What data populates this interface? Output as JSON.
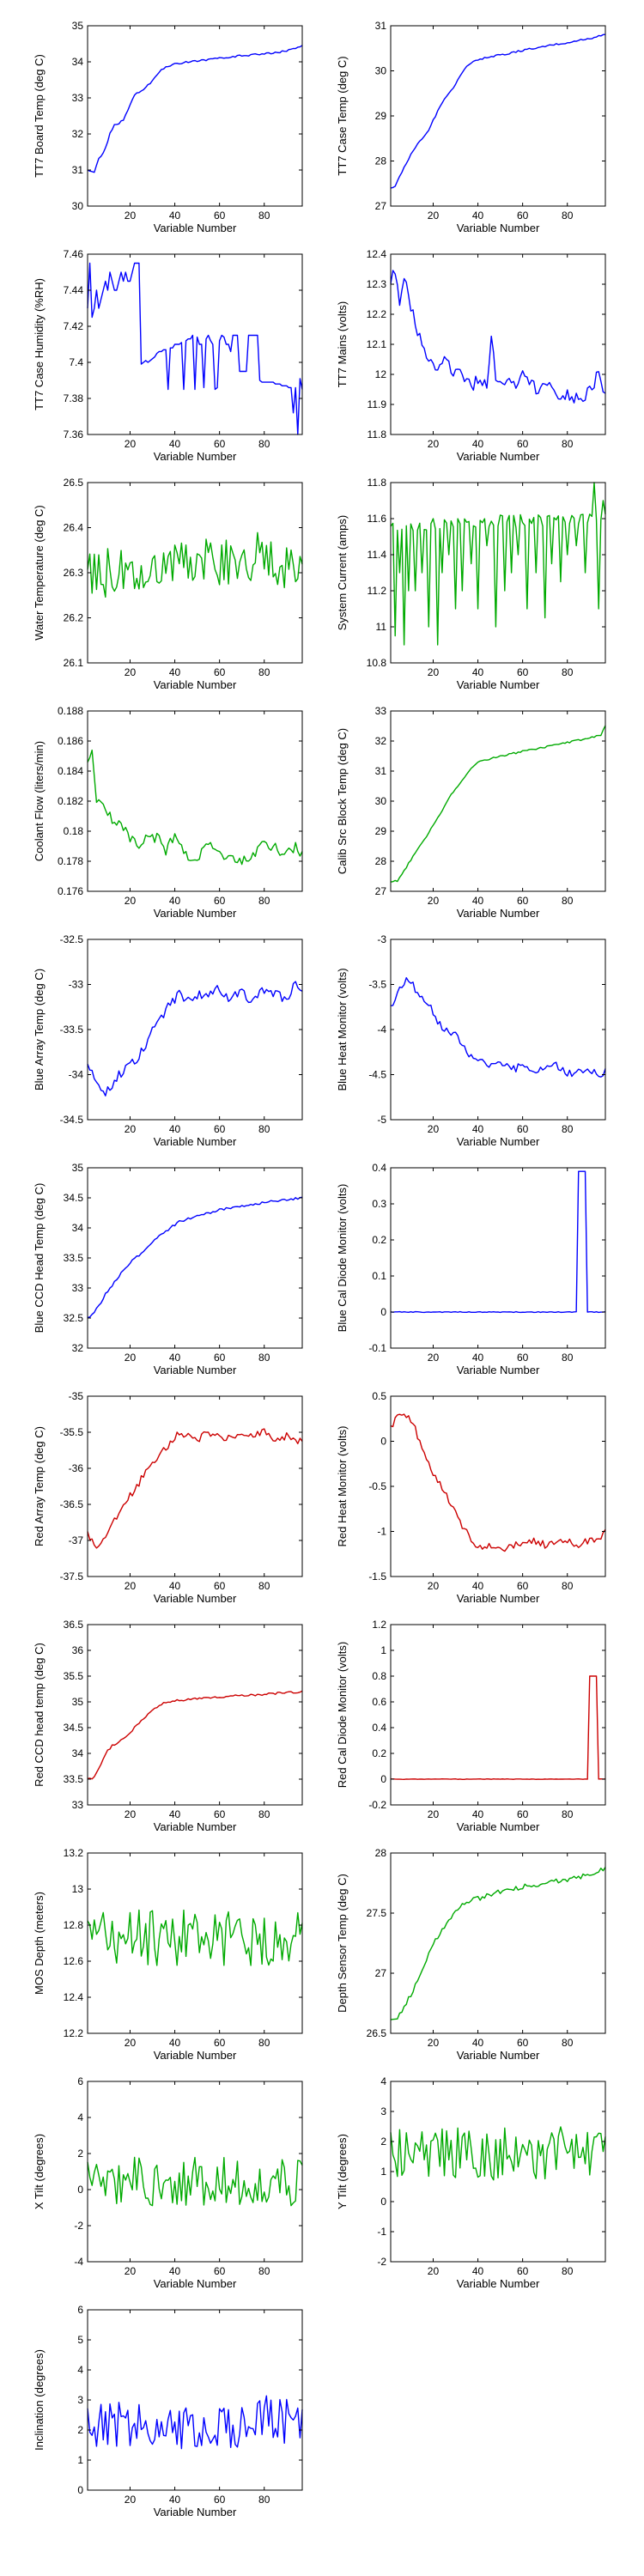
{
  "xlabel": "Variable Number",
  "xticks": [
    20,
    40,
    60,
    80
  ],
  "xlim": [
    1,
    97
  ],
  "colors": {
    "blue": "#0000ff",
    "green": "#00aa00",
    "red": "#cc0000",
    "axis": "#000000"
  },
  "chart_data": [
    {
      "type": "line",
      "ylabel": "TT7 Board Temp (deg C)",
      "color": "blue",
      "ylim": [
        30,
        35
      ],
      "yticks": [
        30,
        31,
        32,
        33,
        34,
        35
      ],
      "kind": "knots",
      "x": [
        1,
        4,
        6,
        9,
        11,
        13,
        15,
        17,
        20,
        22,
        25,
        28,
        31,
        34,
        38,
        40,
        50,
        60,
        70,
        80,
        90,
        97
      ],
      "y": [
        31.0,
        30.95,
        31.3,
        31.6,
        32.0,
        32.25,
        32.3,
        32.4,
        32.8,
        33.1,
        33.2,
        33.35,
        33.55,
        33.8,
        33.9,
        33.95,
        34.02,
        34.1,
        34.17,
        34.22,
        34.3,
        34.45
      ],
      "seed": 11,
      "noise": 0.025
    },
    {
      "type": "line",
      "ylabel": "TT7 Case Temp (deg C)",
      "color": "blue",
      "ylim": [
        27,
        31
      ],
      "yticks": [
        27,
        28,
        29,
        30,
        31
      ],
      "kind": "knots",
      "x": [
        1,
        3,
        6,
        9,
        12,
        15,
        18,
        21,
        24,
        27,
        30,
        33,
        36,
        40,
        50,
        60,
        70,
        80,
        90,
        97
      ],
      "y": [
        27.4,
        27.45,
        27.75,
        28.05,
        28.3,
        28.5,
        28.7,
        29.0,
        29.3,
        29.5,
        29.7,
        29.95,
        30.15,
        30.25,
        30.35,
        30.45,
        30.55,
        30.62,
        30.72,
        30.8
      ],
      "seed": 12,
      "noise": 0.02
    },
    {
      "type": "line",
      "ylabel": "TT7 Case Humidity (%RH)",
      "color": "blue",
      "ylim": [
        7.36,
        7.46
      ],
      "yticks": [
        7.36,
        7.38,
        7.4,
        7.42,
        7.44,
        7.46
      ],
      "kind": "explicit",
      "y": [
        7.43,
        7.455,
        7.425,
        7.43,
        7.44,
        7.43,
        7.435,
        7.44,
        7.445,
        7.44,
        7.45,
        7.445,
        7.44,
        7.44,
        7.445,
        7.45,
        7.445,
        7.45,
        7.445,
        7.445,
        7.45,
        7.455,
        7.455,
        7.455,
        7.399,
        7.4,
        7.401,
        7.4,
        7.401,
        7.402,
        7.403,
        7.405,
        7.406,
        7.406,
        7.407,
        7.407,
        7.385,
        7.408,
        7.408,
        7.41,
        7.41,
        7.41,
        7.411,
        7.385,
        7.412,
        7.413,
        7.413,
        7.415,
        7.385,
        7.414,
        7.41,
        7.41,
        7.386,
        7.413,
        7.415,
        7.412,
        7.41,
        7.385,
        7.386,
        7.412,
        7.415,
        7.414,
        7.41,
        7.41,
        7.406,
        7.415,
        7.415,
        7.415,
        7.395,
        7.395,
        7.395,
        7.395,
        7.415,
        7.415,
        7.415,
        7.415,
        7.415,
        7.39,
        7.389,
        7.389,
        7.389,
        7.389,
        7.389,
        7.389,
        7.388,
        7.388,
        7.388,
        7.387,
        7.387,
        7.387,
        7.386,
        7.386,
        7.372,
        7.386,
        7.36,
        7.391,
        7.385
      ],
      "seed": 0,
      "noise": 0
    },
    {
      "type": "line",
      "ylabel": "TT7 Mains  (volts)",
      "color": "blue",
      "ylim": [
        11.8,
        12.4
      ],
      "yticks": [
        11.8,
        11.9,
        12,
        12.1,
        12.2,
        12.3,
        12.4
      ],
      "kind": "knots",
      "x": [
        1,
        3,
        5,
        7,
        10,
        13,
        16,
        19,
        22,
        25,
        28,
        31,
        34,
        37,
        40,
        44,
        46,
        48,
        52,
        56,
        60,
        66,
        72,
        78,
        84,
        90,
        94,
        97
      ],
      "y": [
        12.3,
        12.35,
        12.25,
        12.32,
        12.22,
        12.15,
        12.08,
        12.05,
        12.02,
        12.07,
        12.0,
        12.02,
        11.98,
        11.96,
        11.98,
        11.96,
        12.12,
        12.0,
        11.97,
        11.96,
        12.0,
        11.95,
        11.96,
        11.93,
        11.92,
        11.94,
        12.01,
        11.93
      ],
      "seed": 14,
      "noise": 0.022
    },
    {
      "type": "line",
      "ylabel": "Water Temperature (deg C)",
      "color": "green",
      "ylim": [
        26.1,
        26.5
      ],
      "yticks": [
        26.1,
        26.2,
        26.3,
        26.4,
        26.5
      ],
      "kind": "knots",
      "x": [
        1,
        20,
        30,
        45,
        60,
        80,
        97
      ],
      "y": [
        26.3,
        26.3,
        26.32,
        26.33,
        26.32,
        26.34,
        26.3
      ],
      "seed": 15,
      "noise": 0.055
    },
    {
      "type": "line",
      "ylabel": "System Current (amps)",
      "color": "green",
      "ylim": [
        10.8,
        11.8
      ],
      "yticks": [
        10.8,
        11,
        11.2,
        11.4,
        11.6,
        11.8
      ],
      "kind": "spikes",
      "base": 11.55,
      "baseNoise": 0.04,
      "drift": 0.06,
      "spikes": [
        [
          3,
          10.95
        ],
        [
          5,
          11.3
        ],
        [
          7,
          10.9
        ],
        [
          9,
          11.2
        ],
        [
          12,
          11.2
        ],
        [
          15,
          11.3
        ],
        [
          18,
          11.0
        ],
        [
          22,
          10.9
        ],
        [
          24,
          11.3
        ],
        [
          27,
          11.4
        ],
        [
          30,
          11.1
        ],
        [
          33,
          11.2
        ],
        [
          37,
          11.35
        ],
        [
          40,
          11.1
        ],
        [
          44,
          11.45
        ],
        [
          48,
          11.0
        ],
        [
          52,
          11.2
        ],
        [
          55,
          11.3
        ],
        [
          58,
          11.4
        ],
        [
          62,
          11.1
        ],
        [
          66,
          11.3
        ],
        [
          70,
          11.05
        ],
        [
          73,
          11.35
        ],
        [
          77,
          11.25
        ],
        [
          80,
          11.4
        ],
        [
          84,
          11.45
        ],
        [
          88,
          11.3
        ],
        [
          92,
          11.8
        ],
        [
          94,
          11.1
        ],
        [
          96,
          11.7
        ]
      ],
      "seed": 16,
      "noise": 0
    },
    {
      "type": "line",
      "ylabel": "Coolant Flow (liters/min)",
      "color": "green",
      "ylim": [
        0.176,
        0.188
      ],
      "yticks": [
        0.176,
        0.178,
        0.18,
        0.182,
        0.184,
        0.186,
        0.188
      ],
      "kind": "knots",
      "x": [
        1,
        3,
        5,
        8,
        12,
        16,
        20,
        24,
        28,
        32,
        36,
        40,
        45,
        50,
        55,
        60,
        65,
        70,
        75,
        80,
        85,
        90,
        94,
        97
      ],
      "y": [
        0.1845,
        0.185,
        0.182,
        0.1815,
        0.1808,
        0.1805,
        0.1795,
        0.1792,
        0.1798,
        0.1795,
        0.1788,
        0.1795,
        0.1785,
        0.1782,
        0.179,
        0.1785,
        0.1783,
        0.178,
        0.1785,
        0.1792,
        0.1788,
        0.1786,
        0.179,
        0.1785
      ],
      "seed": 17,
      "noise": 0.0004
    },
    {
      "type": "line",
      "ylabel": "Calib Src Block Temp (deg C)",
      "color": "green",
      "ylim": [
        27,
        33
      ],
      "yticks": [
        27,
        28,
        29,
        30,
        31,
        32,
        33
      ],
      "kind": "knots",
      "x": [
        1,
        4,
        8,
        12,
        16,
        20,
        24,
        28,
        32,
        36,
        40,
        50,
        60,
        70,
        80,
        90,
        95,
        97
      ],
      "y": [
        27.3,
        27.35,
        27.8,
        28.3,
        28.7,
        29.2,
        29.7,
        30.2,
        30.6,
        31.0,
        31.3,
        31.5,
        31.65,
        31.8,
        31.95,
        32.1,
        32.2,
        32.5
      ],
      "seed": 18,
      "noise": 0.03
    },
    {
      "type": "line",
      "ylabel": "Blue Array Temp (deg C)",
      "color": "blue",
      "ylim": [
        -34.5,
        -32.5
      ],
      "yticks": [
        -34.5,
        -34,
        -33.5,
        -33,
        -32.5
      ],
      "kind": "knots",
      "x": [
        1,
        3,
        6,
        9,
        12,
        15,
        18,
        22,
        26,
        30,
        34,
        38,
        42,
        46,
        50,
        55,
        60,
        65,
        70,
        75,
        80,
        85,
        90,
        94,
        97
      ],
      "y": [
        -33.9,
        -34.0,
        -34.15,
        -34.2,
        -34.1,
        -34.0,
        -33.95,
        -33.85,
        -33.7,
        -33.5,
        -33.4,
        -33.2,
        -33.1,
        -33.2,
        -33.1,
        -33.15,
        -33.05,
        -33.15,
        -33.1,
        -33.2,
        -33.05,
        -33.1,
        -33.15,
        -32.95,
        -33.1
      ],
      "seed": 19,
      "noise": 0.06
    },
    {
      "type": "line",
      "ylabel": "Blue Heat Monitor (volts)",
      "color": "blue",
      "ylim": [
        -5,
        -3
      ],
      "yticks": [
        -5,
        -4.5,
        -4,
        -3.5,
        -3
      ],
      "kind": "knots",
      "x": [
        1,
        3,
        5,
        8,
        11,
        14,
        17,
        20,
        23,
        26,
        30,
        34,
        38,
        40,
        45,
        50,
        55,
        60,
        65,
        70,
        75,
        80,
        85,
        90,
        95,
        97
      ],
      "y": [
        -3.75,
        -3.7,
        -3.55,
        -3.45,
        -3.5,
        -3.65,
        -3.7,
        -3.8,
        -3.95,
        -4.0,
        -4.05,
        -4.2,
        -4.35,
        -4.35,
        -4.38,
        -4.35,
        -4.45,
        -4.4,
        -4.45,
        -4.45,
        -4.4,
        -4.5,
        -4.45,
        -4.45,
        -4.5,
        -4.45
      ],
      "seed": 20,
      "noise": 0.04
    },
    {
      "type": "line",
      "ylabel": "Blue CCD Head Temp (deg C)",
      "color": "blue",
      "ylim": [
        32,
        35
      ],
      "yticks": [
        32,
        32.5,
        33,
        33.5,
        34,
        34.5,
        35
      ],
      "kind": "knots",
      "x": [
        1,
        3,
        6,
        9,
        12,
        15,
        18,
        21,
        24,
        27,
        30,
        34,
        38,
        42,
        50,
        60,
        70,
        80,
        90,
        97
      ],
      "y": [
        32.5,
        32.55,
        32.7,
        32.9,
        33.05,
        33.2,
        33.35,
        33.45,
        33.55,
        33.65,
        33.75,
        33.9,
        34.0,
        34.1,
        34.2,
        34.3,
        34.37,
        34.42,
        34.47,
        34.5
      ],
      "seed": 21,
      "noise": 0.02
    },
    {
      "type": "line",
      "ylabel": "Blue Cal Diode Monitor (volts)",
      "color": "blue",
      "ylim": [
        -0.1,
        0.4
      ],
      "yticks": [
        -0.1,
        0,
        0.1,
        0.2,
        0.3,
        0.4
      ],
      "kind": "pulse",
      "base": 0.0,
      "from": 85,
      "to": 88,
      "peak": 0.39,
      "seed": 22,
      "noise": 0.001
    },
    {
      "type": "line",
      "ylabel": "Red Array Temp (deg C)",
      "color": "red",
      "ylim": [
        -37.5,
        -35
      ],
      "yticks": [
        -37.5,
        -37,
        -36.5,
        -36,
        -35.5,
        -35
      ],
      "kind": "knots",
      "x": [
        1,
        3,
        6,
        9,
        12,
        15,
        18,
        22,
        26,
        30,
        34,
        38,
        42,
        46,
        50,
        55,
        60,
        65,
        70,
        75,
        80,
        85,
        90,
        94,
        97
      ],
      "y": [
        -36.9,
        -37.0,
        -37.1,
        -36.95,
        -36.8,
        -36.6,
        -36.45,
        -36.3,
        -36.1,
        -35.95,
        -35.8,
        -35.65,
        -35.5,
        -35.55,
        -35.6,
        -35.5,
        -35.55,
        -35.6,
        -35.5,
        -35.55,
        -35.5,
        -35.6,
        -35.55,
        -35.6,
        -35.65
      ],
      "seed": 23,
      "noise": 0.05
    },
    {
      "type": "line",
      "ylabel": "Red Heat Monitor (volts)",
      "color": "red",
      "ylim": [
        -1.5,
        0.5
      ],
      "yticks": [
        -1.5,
        -1,
        -0.5,
        0,
        0.5
      ],
      "kind": "knots",
      "x": [
        1,
        3,
        5,
        8,
        11,
        14,
        17,
        20,
        24,
        28,
        32,
        36,
        40,
        44,
        50,
        55,
        60,
        65,
        70,
        75,
        80,
        85,
        90,
        95,
        97
      ],
      "y": [
        0.15,
        0.25,
        0.32,
        0.3,
        0.2,
        0.0,
        -0.2,
        -0.35,
        -0.5,
        -0.7,
        -0.9,
        -1.05,
        -1.2,
        -1.15,
        -1.2,
        -1.15,
        -1.15,
        -1.1,
        -1.15,
        -1.12,
        -1.1,
        -1.15,
        -1.1,
        -1.05,
        -1.0
      ],
      "seed": 24,
      "noise": 0.04
    },
    {
      "type": "line",
      "ylabel": "Red CCD head temp (deg C)",
      "color": "red",
      "ylim": [
        33,
        36.5
      ],
      "yticks": [
        33,
        33.5,
        34,
        34.5,
        35,
        35.5,
        36,
        36.5
      ],
      "kind": "knots",
      "x": [
        1,
        3,
        6,
        9,
        12,
        16,
        20,
        24,
        28,
        32,
        36,
        40,
        50,
        60,
        70,
        80,
        90,
        97
      ],
      "y": [
        33.5,
        33.5,
        33.7,
        34.0,
        34.15,
        34.25,
        34.4,
        34.6,
        34.75,
        34.9,
        35.0,
        35.02,
        35.07,
        35.1,
        35.12,
        35.15,
        35.18,
        35.2
      ],
      "seed": 25,
      "noise": 0.02
    },
    {
      "type": "line",
      "ylabel": "Red Cal Diode Monitor (volts)",
      "color": "red",
      "ylim": [
        -0.2,
        1.2
      ],
      "yticks": [
        -0.2,
        0,
        0.2,
        0.4,
        0.6,
        0.8,
        1,
        1.2
      ],
      "kind": "pulse",
      "base": 0.0,
      "from": 90,
      "to": 93,
      "peak": 0.8,
      "seed": 26,
      "noise": 0.002
    },
    {
      "type": "line",
      "ylabel": "MOS Depth  (meters)",
      "color": "green",
      "ylim": [
        12.2,
        13.2
      ],
      "yticks": [
        12.2,
        12.4,
        12.6,
        12.8,
        13,
        13.2
      ],
      "kind": "knots",
      "x": [
        1,
        50,
        97
      ],
      "y": [
        12.72,
        12.74,
        12.72
      ],
      "seed": 27,
      "noise": 0.16
    },
    {
      "type": "line",
      "ylabel": "Depth Sensor Temp (deg C)",
      "color": "green",
      "ylim": [
        26.5,
        28
      ],
      "yticks": [
        26.5,
        27,
        27.5,
        28
      ],
      "kind": "knots",
      "x": [
        1,
        4,
        8,
        12,
        16,
        20,
        24,
        28,
        32,
        36,
        40,
        50,
        60,
        70,
        80,
        90,
        97
      ],
      "y": [
        26.6,
        26.63,
        26.75,
        26.9,
        27.05,
        27.25,
        27.35,
        27.45,
        27.55,
        27.6,
        27.62,
        27.68,
        27.72,
        27.75,
        27.78,
        27.82,
        27.87
      ],
      "seed": 28,
      "noise": 0.02
    },
    {
      "type": "line",
      "ylabel": "X Tilt  (degrees)",
      "color": "green",
      "ylim": [
        -4,
        6
      ],
      "yticks": [
        -4,
        -2,
        0,
        2,
        4,
        6
      ],
      "kind": "knots",
      "x": [
        1,
        50,
        97
      ],
      "y": [
        0.5,
        0.4,
        0.5
      ],
      "seed": 29,
      "noise": 1.4
    },
    {
      "type": "line",
      "ylabel": "Y Tilt  (degrees)",
      "color": "green",
      "ylim": [
        -2,
        4
      ],
      "yticks": [
        -2,
        -1,
        0,
        1,
        2,
        3,
        4
      ],
      "kind": "knots",
      "x": [
        1,
        50,
        97
      ],
      "y": [
        1.6,
        1.6,
        1.6
      ],
      "seed": 30,
      "noise": 0.9
    },
    {
      "type": "line",
      "ylabel": "Inclination  (degrees)",
      "color": "blue",
      "ylim": [
        0,
        6
      ],
      "yticks": [
        0,
        1,
        2,
        3,
        4,
        5,
        6
      ],
      "kind": "knots",
      "x": [
        1,
        20,
        40,
        60,
        80,
        97
      ],
      "y": [
        2.1,
        2.2,
        2.1,
        2.0,
        2.4,
        2.2
      ],
      "seed": 31,
      "noise": 0.75
    }
  ]
}
